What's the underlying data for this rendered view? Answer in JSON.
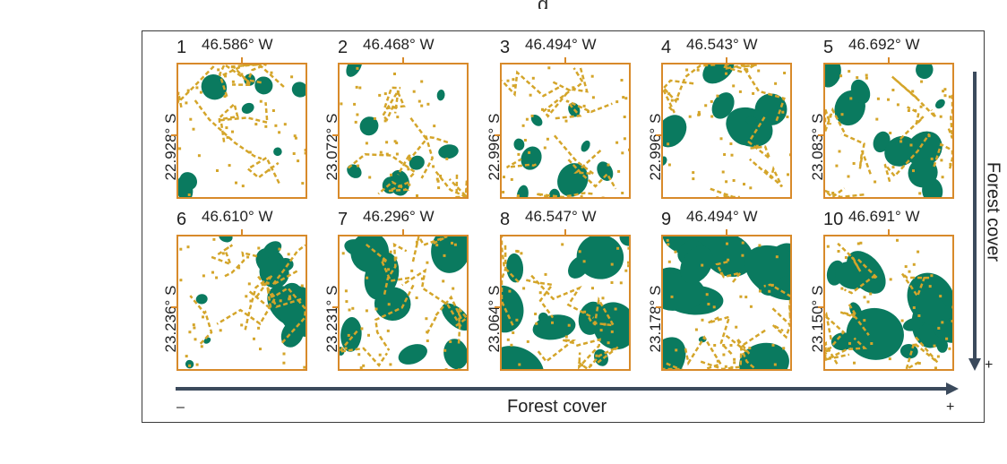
{
  "title_fragment": "g",
  "colors": {
    "forest": "#0a7a5f",
    "edge": "#d4a52a",
    "frame": "#d88a2a",
    "arrow": "#3b4a5c"
  },
  "horizontal_axis": {
    "label": "Forest cover",
    "minus": "–",
    "plus": "+"
  },
  "vertical_axis": {
    "label": "Forest cover",
    "plus": "+"
  },
  "panels": [
    {
      "num": "1",
      "lon": "46.586° W",
      "lat": "22.928° S",
      "forest": 0.12
    },
    {
      "num": "2",
      "lon": "46.468° W",
      "lat": "23.072° S",
      "forest": 0.15
    },
    {
      "num": "3",
      "lon": "46.494° W",
      "lat": "22.996° S",
      "forest": 0.2
    },
    {
      "num": "4",
      "lon": "46.543° W",
      "lat": "22.996° S",
      "forest": 0.28
    },
    {
      "num": "5",
      "lon": "46.692° W",
      "lat": "23.083° S",
      "forest": 0.35
    },
    {
      "num": "6",
      "lon": "46.610° W",
      "lat": "23.236° S",
      "forest": 0.4
    },
    {
      "num": "7",
      "lon": "46.296° W",
      "lat": "23.231° S",
      "forest": 0.45
    },
    {
      "num": "8",
      "lon": "46.547° W",
      "lat": "23.064° S",
      "forest": 0.52
    },
    {
      "num": "9",
      "lon": "46.494° W",
      "lat": "23.178° S",
      "forest": 0.58
    },
    {
      "num": "10",
      "lon": "46.691° W",
      "lat": "23.150° S",
      "forest": 0.65
    }
  ]
}
